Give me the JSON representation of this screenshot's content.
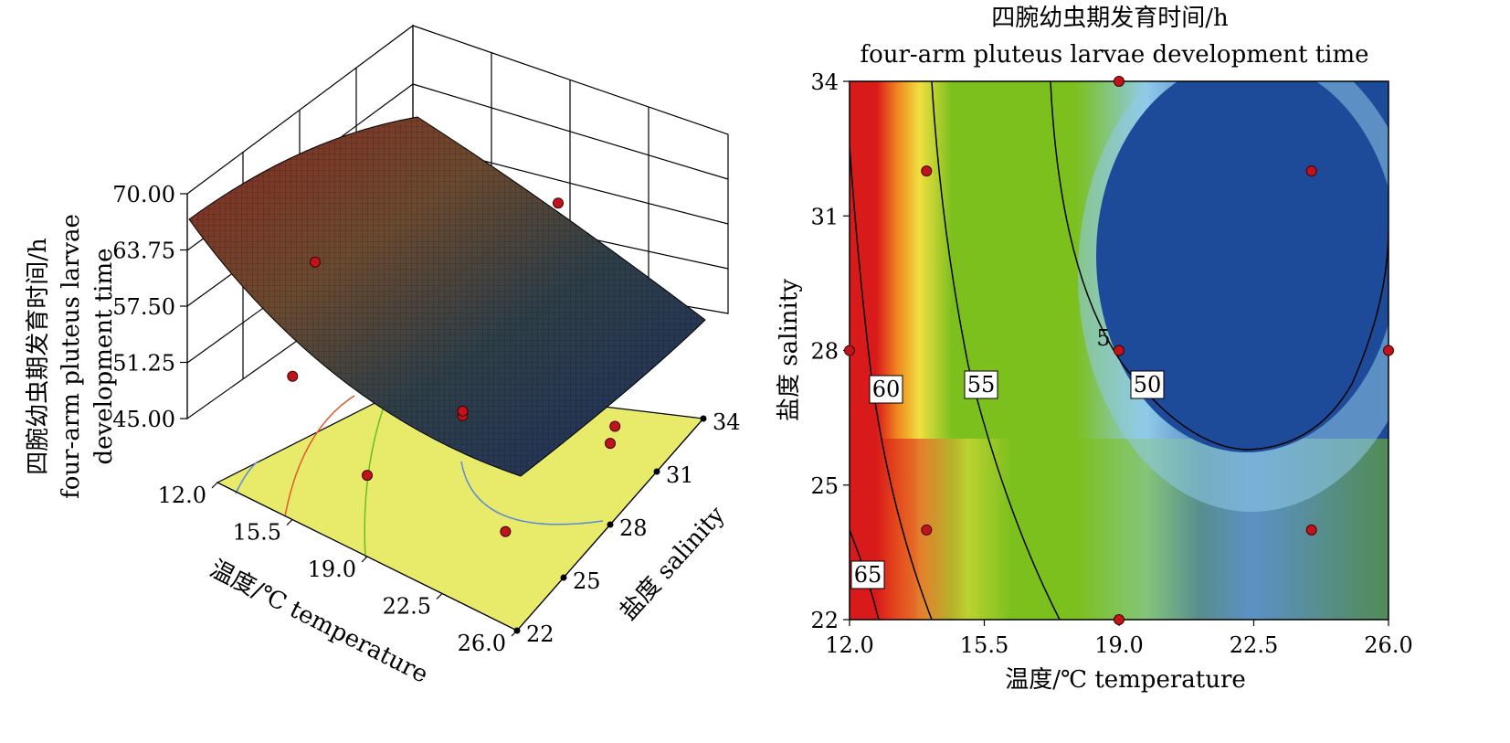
{
  "chart_data": [
    {
      "type": "surface3d",
      "zlabel_lines": [
        "四腕幼虫期发育时间/h",
        "four-arm pluteus larvae",
        "development time"
      ],
      "xlabel": "温度/℃ temperature",
      "ylabel": "盐度 salinity",
      "x_ticks": [
        "12.0",
        "15.5",
        "19.0",
        "22.5",
        "26.0"
      ],
      "y_ticks": [
        "22",
        "25",
        "28",
        "31",
        "34"
      ],
      "z_ticks": [
        "70.00",
        "63.75",
        "57.50",
        "51.25",
        "45.00"
      ],
      "xlim": [
        12.0,
        26.0
      ],
      "ylim": [
        22,
        34
      ],
      "zlim": [
        45.0,
        70.0
      ],
      "floor_color": "#e8ea6a",
      "surface_colors": [
        "#1e3a78",
        "#3a5a3a",
        "#8a2a20"
      ],
      "design_points": [
        {
          "x": 12.0,
          "y": 28,
          "z": 62.0
        },
        {
          "x": 19.0,
          "y": 34,
          "z": 65.0
        },
        {
          "x": 19.0,
          "y": 28,
          "z": 50.0
        },
        {
          "x": 19.0,
          "y": 28,
          "z": 50.5
        },
        {
          "x": 24.0,
          "y": 31,
          "z": 47.0
        },
        {
          "x": 26.0,
          "y": 28,
          "z": 52.0
        },
        {
          "x": 19.0,
          "y": 22,
          "z": 52.0
        },
        {
          "x": 14.0,
          "y": 24,
          "z": 55.0
        },
        {
          "x": 24.0,
          "y": 24,
          "z": 48.0
        }
      ]
    },
    {
      "type": "heatmap",
      "title_lines": [
        "四腕幼虫期发育时间/h",
        "four-arm pluteus larvae development time"
      ],
      "xlabel": "温度/℃ temperature",
      "ylabel": "盐度 salinity",
      "x_ticks": [
        "12.0",
        "15.5",
        "19.0",
        "22.5",
        "26.0"
      ],
      "y_ticks": [
        "34",
        "31",
        "28",
        "25",
        "22"
      ],
      "xlim": [
        12.0,
        26.0
      ],
      "ylim": [
        22,
        34
      ],
      "contour_levels": [
        65,
        60,
        55,
        50
      ],
      "contour_labels": [
        "65",
        "60",
        "55",
        "50",
        "5"
      ],
      "colors": {
        "high": "#d91a1a",
        "orange": "#f08a20",
        "yellow": "#f0e040",
        "green": "#7cc01e",
        "lightblue": "#8fcbea",
        "blue": "#1e4a9a"
      },
      "design_points": [
        {
          "x": 12.0,
          "y": 28
        },
        {
          "x": 14.0,
          "y": 32
        },
        {
          "x": 14.0,
          "y": 24
        },
        {
          "x": 19.0,
          "y": 34
        },
        {
          "x": 19.0,
          "y": 28
        },
        {
          "x": 19.0,
          "y": 22
        },
        {
          "x": 24.0,
          "y": 32
        },
        {
          "x": 24.0,
          "y": 24
        },
        {
          "x": 26.0,
          "y": 28
        }
      ]
    }
  ]
}
